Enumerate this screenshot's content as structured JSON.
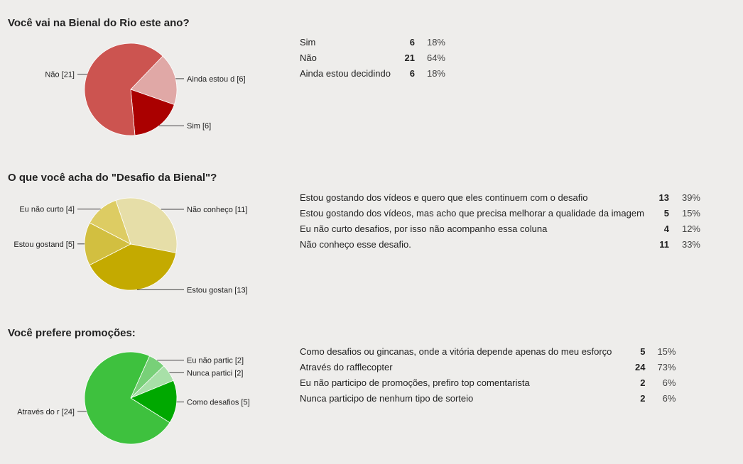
{
  "questions": [
    {
      "title": "Você vai na Bienal do Rio este ano?",
      "options": [
        {
          "label": "Sim",
          "count": "6",
          "percent": "18%"
        },
        {
          "label": "Não",
          "count": "21",
          "percent": "64%"
        },
        {
          "label": "Ainda estou decidindo",
          "count": "6",
          "percent": "18%"
        }
      ]
    },
    {
      "title": "O que você acha do \"Desafio da Bienal\"?",
      "options": [
        {
          "label": "Estou gostando dos vídeos e quero que eles continuem com o desafio",
          "count": "13",
          "percent": "39%"
        },
        {
          "label": "Estou gostando dos vídeos, mas acho que precisa melhorar a qualidade da imagem",
          "count": "5",
          "percent": "15%"
        },
        {
          "label": "Eu não curto desafios, por isso não acompanho essa coluna",
          "count": "4",
          "percent": "12%"
        },
        {
          "label": "Não conheço esse desafio.",
          "count": "11",
          "percent": "33%"
        }
      ]
    },
    {
      "title": "Você prefere promoções:",
      "options": [
        {
          "label": "Como desafios ou gincanas, onde a vitória depende apenas do meu esforço",
          "count": "5",
          "percent": "15%"
        },
        {
          "label": "Através do rafflecopter",
          "count": "24",
          "percent": "73%"
        },
        {
          "label": "Eu não participo de promoções, prefiro top comentarista",
          "count": "2",
          "percent": "6%"
        },
        {
          "label": "Nunca participo de nenhum tipo de sorteio",
          "count": "2",
          "percent": "6%"
        }
      ]
    }
  ],
  "chart_data": [
    {
      "type": "pie",
      "slices": [
        {
          "label": "Ainda estou d [6]",
          "value": 6,
          "color": "#e0a8a6"
        },
        {
          "label": "Sim [6]",
          "value": 6,
          "color": "#aa0000"
        },
        {
          "label": "Não [21]",
          "value": 21,
          "color": "#cc5450"
        }
      ]
    },
    {
      "type": "pie",
      "slices": [
        {
          "label": "Não conheço  [11]",
          "value": 11,
          "color": "#e6dea8"
        },
        {
          "label": "Estou gostan [13]",
          "value": 13,
          "color": "#c4aa00"
        },
        {
          "label": "Estou gostand [5]",
          "value": 5,
          "color": "#d2bf40"
        },
        {
          "label": "Eu não curto  [4]",
          "value": 4,
          "color": "#ddcc63"
        }
      ]
    },
    {
      "type": "pie",
      "slices": [
        {
          "label": "Eu não partic [2]",
          "value": 2,
          "color": "#78d078"
        },
        {
          "label": "Nunca partici [2]",
          "value": 2,
          "color": "#a8e0a8"
        },
        {
          "label": "Como desafios [5]",
          "value": 5,
          "color": "#00a800"
        },
        {
          "label": "Através do r [24]",
          "value": 24,
          "color": "#3ec13e"
        }
      ]
    }
  ]
}
